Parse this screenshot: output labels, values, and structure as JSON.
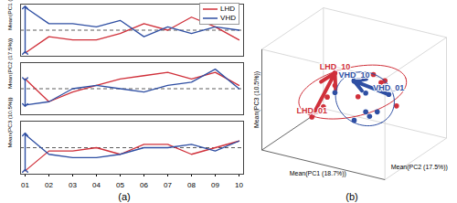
{
  "chart_data": [
    {
      "type": "line",
      "caption": "(a)",
      "categories": [
        "01",
        "02",
        "03",
        "04",
        "05",
        "06",
        "07",
        "08",
        "09",
        "10"
      ],
      "legend": "top-right",
      "tick_labels": "x",
      "grid": true,
      "series": [
        {
          "name": "LHD",
          "color": "#d0303a"
        },
        {
          "name": "VHD",
          "color": "#2f4fa3"
        }
      ],
      "panels": [
        {
          "ylabel": "Mean(PC1 (18.7%))",
          "ylim": [
            -4,
            4
          ],
          "yticks": [
            0
          ],
          "values": [
            [
              -3.5,
              -1,
              -1.5,
              -1.5,
              -0.5,
              1,
              0,
              2,
              0.5,
              -1.5
            ],
            [
              3.5,
              1,
              1,
              0.5,
              1.5,
              -1,
              0.5,
              -0.5,
              0.5,
              0
            ]
          ]
        },
        {
          "ylabel": "Mean(PC2 (17.5%))",
          "ylim": [
            -4,
            4
          ],
          "yticks": [
            0
          ],
          "values": [
            [
              1.5,
              -2,
              -0.5,
              0.5,
              1.5,
              2,
              2.5,
              1.5,
              2.5,
              0.5
            ],
            [
              -2.5,
              -2,
              0,
              0.5,
              0,
              -0.5,
              0.5,
              1,
              3,
              0
            ]
          ]
        },
        {
          "ylabel": "Mean(PC3 (10.5%))",
          "ylim": [
            -4,
            4
          ],
          "yticks": [
            0
          ],
          "values": [
            [
              -3.5,
              -0.5,
              -0.5,
              0,
              -1,
              0.5,
              0.5,
              -1,
              0,
              1
            ],
            [
              2,
              -1,
              -1.5,
              -1.5,
              -1,
              0,
              0,
              0.5,
              -0.5,
              1
            ]
          ]
        }
      ]
    },
    {
      "type": "scatter3d",
      "caption": "(b)",
      "tick_labels": false,
      "xlabel": "Mean(PC1 (18.7%))",
      "ylabel": "Mean(PC2 (17.5%))",
      "zlabel": "Mean(PC3 (10.5%))",
      "xlim": [
        -4,
        4
      ],
      "ylim": [
        -4,
        4
      ],
      "zlim": [
        -4,
        4
      ],
      "series": [
        {
          "name": "LHD",
          "color": "#d0303a",
          "x": [
            -3.5,
            -1,
            -1.5,
            -1.5,
            -0.5,
            1,
            0,
            2,
            0.5,
            -1.5
          ],
          "y": [
            1.5,
            -2,
            -0.5,
            0.5,
            1.5,
            2,
            2.5,
            1.5,
            2.5,
            0.5
          ],
          "z": [
            -3.5,
            -0.5,
            -0.5,
            0,
            -1,
            0.5,
            0.5,
            -1,
            0,
            1
          ],
          "point_labels": [
            "LHD_01",
            null,
            null,
            null,
            null,
            null,
            null,
            null,
            null,
            "LHD_10"
          ]
        },
        {
          "name": "VHD",
          "color": "#2f4fa3",
          "x": [
            3.5,
            1,
            1,
            0.5,
            1.5,
            -1,
            0.5,
            -0.5,
            0.5,
            0
          ],
          "y": [
            -2.5,
            -2,
            0,
            0.5,
            0,
            -0.5,
            0.5,
            1,
            3,
            0
          ],
          "z": [
            2,
            -1,
            -1.5,
            -1.5,
            -1,
            0,
            0,
            0.5,
            -0.5,
            1
          ],
          "point_labels": [
            "VHD_01",
            null,
            null,
            null,
            null,
            null,
            null,
            null,
            null,
            "VHD_10"
          ]
        }
      ]
    }
  ]
}
